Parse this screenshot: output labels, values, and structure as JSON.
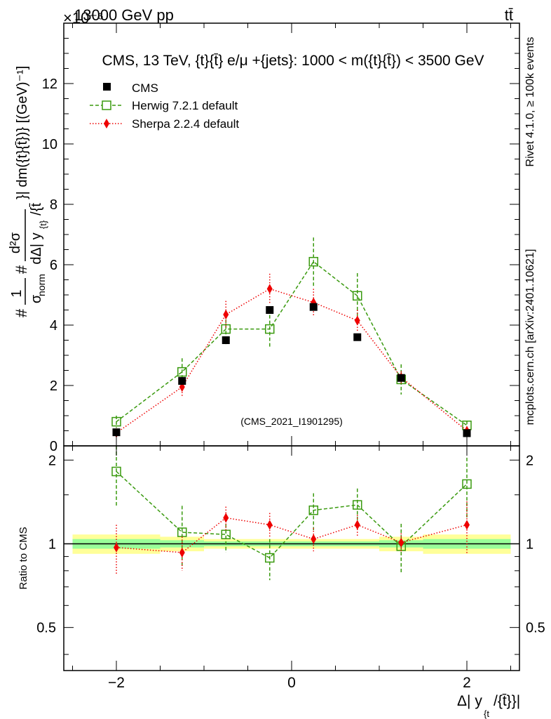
{
  "header": {
    "left_label": "13000 GeV pp",
    "right_label": "tt̄",
    "exponent_label": "×10⁻⁶"
  },
  "side_labels": {
    "rivet": "Rivet 4.1.0, ≥ 100k events",
    "mcplots": "mcplots.cern.ch [arXiv:2401.10621]"
  },
  "colors": {
    "cms": "#000000",
    "herwig": "#3a9a0f",
    "sherpa": "#ee0000",
    "band_outer": "#ffff99",
    "band_inner": "#99ff99",
    "watermark": "#999999"
  },
  "chart_data": [
    {
      "type": "scatter",
      "panel": "main",
      "title": "CMS, 13 TeV, {t}{t̄} e/μ +{jets}: 1000 < m({t}{t̄}) < 3500 GeV",
      "watermark": "(CMS_2021_I1901295)",
      "ylabel": "#1/σ_norm # d²σ / dΔ|y_{t}/{t̄}| dm({t}{t̄}) [(GeV)⁻¹]",
      "ylabel_parts": {
        "hash": "#",
        "frac1_num": "1",
        "frac1_den": "σ",
        "frac1_den_sub": "norm",
        "frac2_num": "d²σ",
        "frac2_den": "dΔ| y",
        "frac2_den_sub": "{t}",
        "frac2_den_tail": "/{t̄",
        "tail": "}| dm({t}{t̄})} [(GeV)⁻¹]"
      },
      "xlim": [
        -2.6,
        2.6
      ],
      "ylim": [
        0,
        14
      ],
      "y_scale": "1e-6",
      "xticks": [
        -2,
        0,
        2
      ],
      "xtick_labels": [
        "−2",
        "0",
        "2"
      ],
      "yticks": [
        0,
        2,
        4,
        6,
        8,
        10,
        12
      ],
      "ytick_labels": [
        "0",
        "2",
        "4",
        "6",
        "8",
        "10",
        "12"
      ],
      "legend_position": "top-left",
      "series": [
        {
          "name": "CMS",
          "marker": "square-filled",
          "x": [
            -2.0,
            -1.25,
            -0.75,
            -0.25,
            0.25,
            0.75,
            1.25,
            2.0
          ],
          "y": [
            0.45,
            2.15,
            3.5,
            4.5,
            4.6,
            3.6,
            2.25,
            0.42
          ]
        },
        {
          "name": "Herwig 7.2.1 default",
          "marker": "square-open",
          "line": "dashed",
          "x": [
            -2.0,
            -1.25,
            -0.75,
            -0.25,
            0.25,
            0.75,
            1.25,
            2.0
          ],
          "y": [
            0.8,
            2.45,
            3.87,
            3.87,
            6.1,
            4.97,
            2.2,
            0.68
          ],
          "yerr": [
            0.2,
            0.45,
            0.5,
            0.65,
            0.8,
            0.75,
            0.5,
            0.15
          ]
        },
        {
          "name": "Sherpa 2.2.4 default",
          "marker": "diamond-filled",
          "line": "dotted",
          "x": [
            -2.0,
            -1.25,
            -0.75,
            -0.25,
            0.25,
            0.75,
            1.25,
            2.0
          ],
          "y": [
            0.43,
            1.95,
            4.35,
            5.2,
            4.75,
            4.15,
            2.27,
            0.5
          ],
          "yerr": [
            0.1,
            0.3,
            0.45,
            0.5,
            0.45,
            0.35,
            0.2,
            0.1
          ]
        }
      ]
    },
    {
      "type": "scatter",
      "panel": "ratio",
      "ylabel": "Ratio to CMS",
      "xlabel": "Δ| y_{t}/{t̄}}|",
      "xlabel_parts": {
        "main": "Δ| y",
        "sub": "{t",
        "tail": "/{t̄}}|"
      },
      "xlim": [
        -2.6,
        2.6
      ],
      "ylim": [
        0.35,
        2.25
      ],
      "xticks": [
        -2,
        0,
        2
      ],
      "xtick_labels": [
        "−2",
        "0",
        "2"
      ],
      "yticks": [
        0.5,
        1,
        2
      ],
      "ytick_labels": [
        "0.5",
        "1",
        "2"
      ],
      "bands": [
        {
          "xlo": -2.5,
          "xhi": -1.5,
          "outer": [
            0.92,
            1.08
          ],
          "inner": [
            0.96,
            1.04
          ]
        },
        {
          "xlo": -1.5,
          "xhi": -1.0,
          "outer": [
            0.94,
            1.06
          ],
          "inner": [
            0.97,
            1.03
          ]
        },
        {
          "xlo": -1.0,
          "xhi": -0.5,
          "outer": [
            0.96,
            1.04
          ],
          "inner": [
            0.98,
            1.02
          ]
        },
        {
          "xlo": -0.5,
          "xhi": 0.0,
          "outer": [
            0.96,
            1.04
          ],
          "inner": [
            0.98,
            1.02
          ]
        },
        {
          "xlo": 0.0,
          "xhi": 0.5,
          "outer": [
            0.96,
            1.04
          ],
          "inner": [
            0.98,
            1.02
          ]
        },
        {
          "xlo": 0.5,
          "xhi": 1.0,
          "outer": [
            0.96,
            1.04
          ],
          "inner": [
            0.98,
            1.02
          ]
        },
        {
          "xlo": 1.0,
          "xhi": 1.5,
          "outer": [
            0.94,
            1.06
          ],
          "inner": [
            0.97,
            1.03
          ]
        },
        {
          "xlo": 1.5,
          "xhi": 2.5,
          "outer": [
            0.92,
            1.08
          ],
          "inner": [
            0.96,
            1.04
          ]
        }
      ],
      "series": [
        {
          "name": "Herwig 7.2.1 default",
          "marker": "square-open",
          "line": "dashed",
          "x": [
            -2.0,
            -1.25,
            -0.75,
            -0.25,
            0.25,
            0.75,
            1.25,
            2.0
          ],
          "y": [
            1.82,
            1.1,
            1.08,
            0.89,
            1.32,
            1.38,
            0.98,
            1.64
          ],
          "yerr": [
            0.45,
            0.27,
            0.15,
            0.15,
            0.2,
            0.2,
            0.2,
            0.4
          ]
        },
        {
          "name": "Sherpa 2.2.4 default",
          "marker": "diamond-filled",
          "line": "dotted",
          "x": [
            -2.0,
            -1.25,
            -0.75,
            -0.25,
            0.25,
            0.75,
            1.25,
            2.0
          ],
          "y": [
            0.97,
            0.93,
            1.24,
            1.17,
            1.04,
            1.17,
            1.01,
            1.17
          ],
          "yerr": [
            0.2,
            0.13,
            0.12,
            0.12,
            0.1,
            0.1,
            0.08,
            0.25
          ]
        }
      ]
    }
  ]
}
